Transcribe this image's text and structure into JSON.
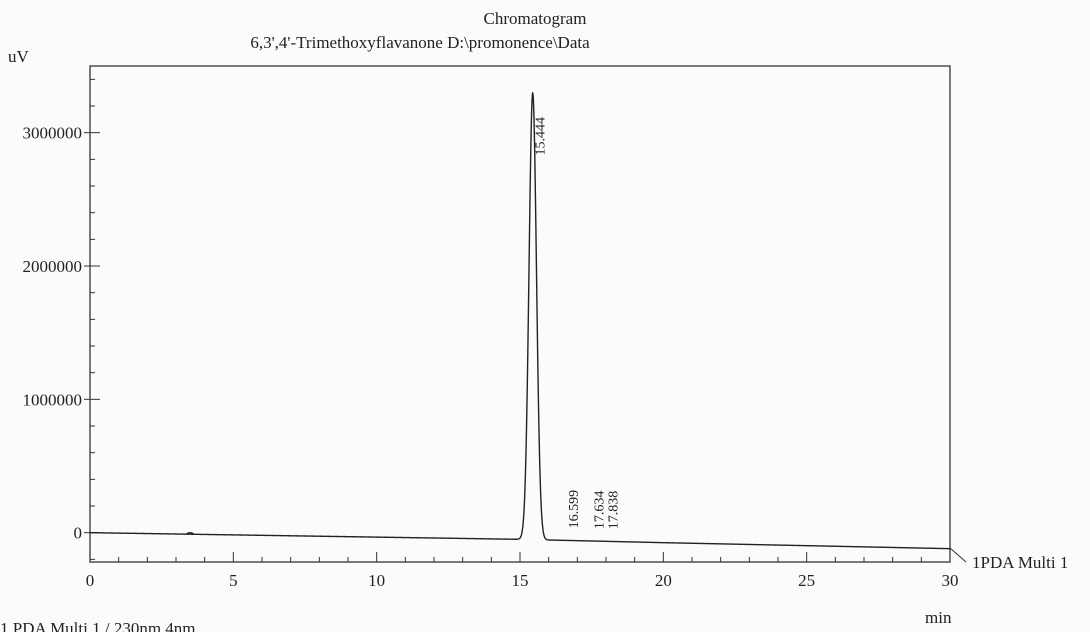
{
  "chart_data": {
    "type": "line",
    "title": "Chromatogram",
    "subtitle": "6,3',4'-Trimethoxyflavanone D:\\promonence\\Data",
    "ylabel": "uV",
    "xlabel": "min",
    "xlim": [
      0,
      30
    ],
    "ylim": [
      -220000,
      3500000
    ],
    "x_ticks": [
      "0",
      "5",
      "10",
      "15",
      "20",
      "25",
      "30"
    ],
    "y_ticks": [
      "0",
      "1000000",
      "2000000",
      "3000000"
    ],
    "grid": false,
    "series_label": "1PDA Multi 1",
    "footnote": "1  PDA Multi 1 / 230nm 4nm",
    "peaks": [
      {
        "rt": 15.444,
        "label": "15.444",
        "height": 3350000
      },
      {
        "rt": 16.599,
        "label": "16.599",
        "height": 0
      },
      {
        "rt": 17.634,
        "label": "17.634",
        "height": 0
      },
      {
        "rt": 17.838,
        "label": "17.838",
        "height": 0
      }
    ],
    "baseline": [
      [
        0,
        0
      ],
      [
        15.0,
        -50000
      ],
      [
        20,
        -75000
      ],
      [
        30,
        -120000
      ]
    ]
  }
}
